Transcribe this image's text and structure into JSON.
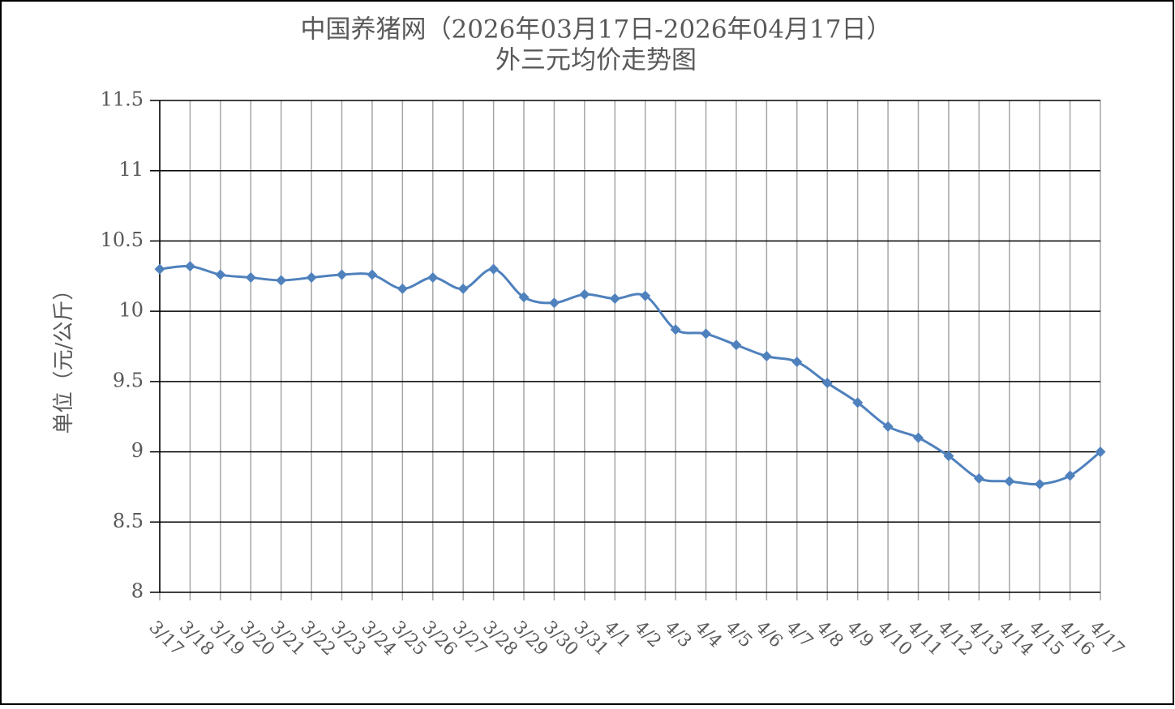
{
  "chart_data": {
    "type": "line",
    "title": "中国养猪网（2026年03月17日-2026年04月17日）",
    "subtitle": "外三元均价走势图",
    "y_label": "单位（元/公斤）",
    "categories": [
      "3/17",
      "3/18",
      "3/19",
      "3/20",
      "3/21",
      "3/22",
      "3/23",
      "3/24",
      "3/25",
      "3/26",
      "3/27",
      "3/28",
      "3/29",
      "3/30",
      "3/31",
      "4/1",
      "4/2",
      "4/3",
      "4/4",
      "4/5",
      "4/6",
      "4/7",
      "4/8",
      "4/9",
      "4/10",
      "4/11",
      "4/12",
      "4/13",
      "4/14",
      "4/15",
      "4/16",
      "4/17"
    ],
    "series": [
      {
        "color": "#4f81bd",
        "values": [
          10.3,
          10.32,
          10.26,
          10.24,
          10.22,
          10.24,
          10.26,
          10.26,
          10.16,
          10.24,
          10.16,
          10.3,
          10.1,
          10.06,
          10.12,
          10.09,
          10.11,
          9.87,
          9.84,
          9.76,
          9.68,
          9.64,
          9.49,
          9.35,
          9.18,
          9.1,
          8.97,
          8.81,
          8.79,
          8.77,
          8.83,
          9.0
        ]
      }
    ],
    "ylim": [
      8,
      11.5
    ],
    "yticks": [
      8,
      8.5,
      9,
      9.5,
      10,
      10.5,
      11,
      11.5
    ],
    "grid": true
  }
}
